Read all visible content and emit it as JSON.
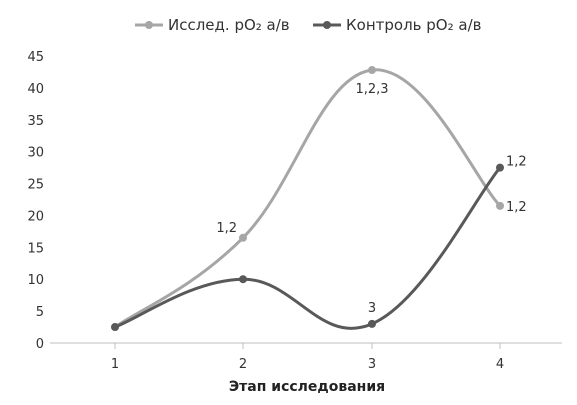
{
  "chart_data": {
    "type": "line",
    "x": [
      1,
      2,
      3,
      4
    ],
    "categories": [
      "1",
      "2",
      "3",
      "4"
    ],
    "xlabel": "Этап исследования",
    "ylabel": "",
    "ylim": [
      0,
      45
    ],
    "yticks": [
      0,
      5,
      10,
      15,
      20,
      25,
      30,
      35,
      40,
      45
    ],
    "grid": false,
    "legend_position": "top",
    "smooth": true,
    "series": [
      {
        "name": "Исслед. pO₂ а/в",
        "color": "#a6a6a6",
        "values": [
          2.5,
          16.5,
          42.8,
          21.5
        ],
        "labels": [
          "",
          "1,2",
          "1,2,3",
          "1,2"
        ]
      },
      {
        "name": "Контроль pO₂ а/в",
        "color": "#595959",
        "values": [
          2.5,
          10,
          3,
          27.5
        ],
        "labels": [
          "",
          "",
          "3",
          "1,2"
        ]
      }
    ]
  }
}
